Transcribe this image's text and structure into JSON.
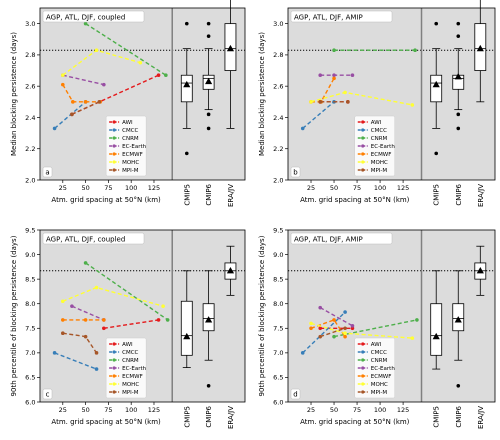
{
  "colors": {
    "panel_bg": "#dcdcdc",
    "AWI": "#e41a1c",
    "CMCC": "#377eb8",
    "CNRM": "#4daf4a",
    "EC-Earth": "#984ea3",
    "ECMWF": "#ff7f00",
    "MOHC": "#ffff33",
    "MPI-M": "#a65628"
  },
  "legend_order": [
    "AWI",
    "CMCC",
    "CNRM",
    "EC-Earth",
    "ECMWF",
    "MOHC",
    "MPI-M"
  ],
  "chart_data": [
    {
      "type": "line",
      "panel_label": "a",
      "title": "AGP, ATL, DJF, coupled",
      "xlabel": "Atm. grid spacing at 50°N (km)",
      "ylabel": "Median blocking persistence (days)",
      "xlim": [
        0,
        145
      ],
      "ylim": [
        2.0,
        3.1
      ],
      "xticks": [
        "25",
        "50",
        "75",
        "100",
        "125"
      ],
      "xtick_values": [
        25,
        50,
        75,
        100,
        125
      ],
      "yticks": [
        "2.0",
        "2.2",
        "2.4",
        "2.6",
        "2.8",
        "3.0"
      ],
      "ytick_values": [
        2.0,
        2.2,
        2.4,
        2.6,
        2.8,
        3.0
      ],
      "reference_line": 2.83,
      "grid": false,
      "legend_position": "lower-center",
      "series": [
        {
          "name": "AWI",
          "x": [
            35,
            130
          ],
          "y": [
            2.42,
            2.67
          ]
        },
        {
          "name": "CMCC",
          "x": [
            16,
            50
          ],
          "y": [
            2.33,
            2.5
          ]
        },
        {
          "name": "CNRM",
          "x": [
            50,
            138
          ],
          "y": [
            3.0,
            2.67
          ]
        },
        {
          "name": "EC-Earth",
          "x": [
            25,
            70
          ],
          "y": [
            2.67,
            2.61
          ]
        },
        {
          "name": "ECMWF",
          "x": [
            25,
            36,
            50,
            66
          ],
          "y": [
            2.61,
            2.5,
            2.5,
            2.5
          ]
        },
        {
          "name": "MOHC",
          "x": [
            25,
            62,
            110
          ],
          "y": [
            2.67,
            2.83,
            2.75
          ]
        },
        {
          "name": "MPI-M",
          "x": [
            35,
            65
          ],
          "y": [
            2.42,
            2.5
          ]
        }
      ],
      "boxplots": [
        {
          "category": "CMIP5",
          "whisker_low": 2.33,
          "q1": 2.5,
          "median": 2.62,
          "q3": 2.67,
          "whisker_high": 2.84,
          "mean": 2.61,
          "outliers": [
            2.17,
            3.0
          ]
        },
        {
          "category": "CMIP6",
          "whisker_low": 2.45,
          "q1": 2.58,
          "median": 2.65,
          "q3": 2.67,
          "whisker_high": 2.84,
          "mean": 2.63,
          "outliers": [
            2.33,
            2.42,
            2.92,
            3.0
          ]
        },
        {
          "category": "ERA/JV",
          "whisker_low": 2.33,
          "q1": 2.7,
          "median": 2.84,
          "q3": 3.0,
          "whisker_high": 3.17,
          "mean": 2.84,
          "outliers": []
        }
      ]
    },
    {
      "type": "line",
      "panel_label": "b",
      "title": "AGP, ATL, DJF, AMIP",
      "xlabel": "Atm. grid spacing at 50°N (km)",
      "ylabel": "Median blocking persistence (days)",
      "xlim": [
        0,
        145
      ],
      "ylim": [
        2.0,
        3.1
      ],
      "xticks": [
        "25",
        "50",
        "75",
        "100",
        "125"
      ],
      "xtick_values": [
        25,
        50,
        75,
        100,
        125
      ],
      "yticks": [
        "2.0",
        "2.2",
        "2.4",
        "2.6",
        "2.8",
        "3.0"
      ],
      "ytick_values": [
        2.0,
        2.2,
        2.4,
        2.6,
        2.8,
        3.0
      ],
      "reference_line": 2.83,
      "grid": false,
      "legend_position": "lower-center",
      "series": [
        {
          "name": "AWI",
          "x": [
            35,
            65
          ],
          "y": [
            2.5,
            2.5
          ]
        },
        {
          "name": "CMCC",
          "x": [
            16,
            50
          ],
          "y": [
            2.33,
            2.5
          ]
        },
        {
          "name": "CNRM",
          "x": [
            50,
            138
          ],
          "y": [
            2.83,
            2.83
          ]
        },
        {
          "name": "EC-Earth",
          "x": [
            35,
            50,
            70
          ],
          "y": [
            2.67,
            2.67,
            2.67
          ]
        },
        {
          "name": "ECMWF",
          "x": [
            25,
            36,
            50
          ],
          "y": [
            2.5,
            2.5,
            2.65
          ]
        },
        {
          "name": "MOHC",
          "x": [
            25,
            62,
            135
          ],
          "y": [
            2.5,
            2.56,
            2.48
          ]
        },
        {
          "name": "MPI-M",
          "x": [
            35,
            65
          ],
          "y": [
            2.5,
            2.5
          ]
        }
      ],
      "boxplots": [
        {
          "category": "CMIP5",
          "whisker_low": 2.33,
          "q1": 2.5,
          "median": 2.62,
          "q3": 2.67,
          "whisker_high": 2.84,
          "mean": 2.61,
          "outliers": [
            2.17,
            3.0
          ]
        },
        {
          "category": "CMIP6",
          "whisker_low": 2.45,
          "q1": 2.58,
          "median": 2.65,
          "q3": 2.67,
          "whisker_high": 2.84,
          "mean": 2.66,
          "outliers": [
            2.33,
            2.42,
            2.92,
            3.0
          ]
        },
        {
          "category": "ERA/JV",
          "whisker_low": 2.5,
          "q1": 2.7,
          "median": 2.84,
          "q3": 3.0,
          "whisker_high": 3.17,
          "mean": 2.84,
          "outliers": []
        }
      ]
    },
    {
      "type": "line",
      "panel_label": "c",
      "title": "AGP, ATL, DJF, coupled",
      "xlabel": "Atm. grid spacing at 50°N (km)",
      "ylabel": "90th percentile of blocking persistence (days)",
      "xlim": [
        0,
        145
      ],
      "ylim": [
        6.0,
        9.5
      ],
      "xticks": [
        "25",
        "50",
        "75",
        "100",
        "125"
      ],
      "xtick_values": [
        25,
        50,
        75,
        100,
        125
      ],
      "yticks": [
        "6.0",
        "6.5",
        "7.0",
        "7.5",
        "8.0",
        "8.5",
        "9.0",
        "9.5"
      ],
      "ytick_values": [
        6.0,
        6.5,
        7.0,
        7.5,
        8.0,
        8.5,
        9.0,
        9.5
      ],
      "reference_line": 8.67,
      "grid": false,
      "legend_position": "lower-center",
      "series": [
        {
          "name": "AWI",
          "x": [
            70,
            130
          ],
          "y": [
            7.5,
            7.67
          ]
        },
        {
          "name": "CMCC",
          "x": [
            16,
            62
          ],
          "y": [
            7.0,
            6.67
          ]
        },
        {
          "name": "CNRM",
          "x": [
            50,
            140
          ],
          "y": [
            8.83,
            7.67
          ]
        },
        {
          "name": "EC-Earth",
          "x": [
            35,
            70
          ],
          "y": [
            7.95,
            7.67
          ]
        },
        {
          "name": "ECMWF",
          "x": [
            25,
            50,
            70
          ],
          "y": [
            7.67,
            7.67,
            7.67
          ]
        },
        {
          "name": "MOHC",
          "x": [
            25,
            62,
            135
          ],
          "y": [
            8.05,
            8.33,
            7.95
          ]
        },
        {
          "name": "MPI-M",
          "x": [
            25,
            50,
            62
          ],
          "y": [
            7.4,
            7.33,
            7.0
          ]
        }
      ],
      "boxplots": [
        {
          "category": "CMIP5",
          "whisker_low": 6.7,
          "q1": 6.95,
          "median": 7.35,
          "q3": 8.05,
          "whisker_high": 8.67,
          "mean": 7.33,
          "outliers": []
        },
        {
          "category": "CMIP6",
          "whisker_low": 6.85,
          "q1": 7.45,
          "median": 7.7,
          "q3": 8.0,
          "whisker_high": 8.67,
          "mean": 7.67,
          "outliers": [
            6.33
          ]
        },
        {
          "category": "ERA/JV",
          "whisker_low": 8.17,
          "q1": 8.5,
          "median": 8.67,
          "q3": 8.83,
          "whisker_high": 9.17,
          "mean": 8.67,
          "outliers": []
        }
      ]
    },
    {
      "type": "line",
      "panel_label": "d",
      "title": "AGP, ATL, DJF, AMIP",
      "xlabel": "Atm. grid spacing at 50°N (km)",
      "ylabel": "90th percentile of blocking persistence (days)",
      "xlim": [
        0,
        145
      ],
      "ylim": [
        6.0,
        9.5
      ],
      "xticks": [
        "25",
        "50",
        "75",
        "100",
        "125"
      ],
      "xtick_values": [
        25,
        50,
        75,
        100,
        125
      ],
      "yticks": [
        "6.0",
        "6.5",
        "7.0",
        "7.5",
        "8.0",
        "8.5",
        "9.0",
        "9.5"
      ],
      "ytick_values": [
        6.0,
        6.5,
        7.0,
        7.5,
        8.0,
        8.5,
        9.0,
        9.5
      ],
      "reference_line": 8.67,
      "grid": false,
      "legend_position": "lower-center",
      "series": [
        {
          "name": "AWI",
          "x": [
            35,
            70
          ],
          "y": [
            7.5,
            7.5
          ]
        },
        {
          "name": "CMCC",
          "x": [
            16,
            62
          ],
          "y": [
            7.0,
            7.83
          ]
        },
        {
          "name": "CNRM",
          "x": [
            50,
            140
          ],
          "y": [
            7.33,
            7.67
          ]
        },
        {
          "name": "EC-Earth",
          "x": [
            35,
            70
          ],
          "y": [
            7.92,
            7.55
          ]
        },
        {
          "name": "ECMWF",
          "x": [
            25,
            50,
            62
          ],
          "y": [
            7.5,
            7.67,
            7.33
          ]
        },
        {
          "name": "MOHC",
          "x": [
            25,
            62,
            135
          ],
          "y": [
            7.6,
            7.4,
            7.3
          ]
        },
        {
          "name": "MPI-M",
          "x": [
            35,
            62
          ],
          "y": [
            7.33,
            7.5
          ]
        }
      ],
      "boxplots": [
        {
          "category": "CMIP5",
          "whisker_low": 6.67,
          "q1": 6.95,
          "median": 7.35,
          "q3": 8.0,
          "whisker_high": 8.67,
          "mean": 7.33,
          "outliers": []
        },
        {
          "category": "CMIP6",
          "whisker_low": 6.85,
          "q1": 7.45,
          "median": 7.7,
          "q3": 8.0,
          "whisker_high": 8.67,
          "mean": 7.67,
          "outliers": [
            6.33
          ]
        },
        {
          "category": "ERA/JV",
          "whisker_low": 8.17,
          "q1": 8.5,
          "median": 8.67,
          "q3": 8.83,
          "whisker_high": 9.17,
          "mean": 8.67,
          "outliers": []
        }
      ]
    }
  ]
}
